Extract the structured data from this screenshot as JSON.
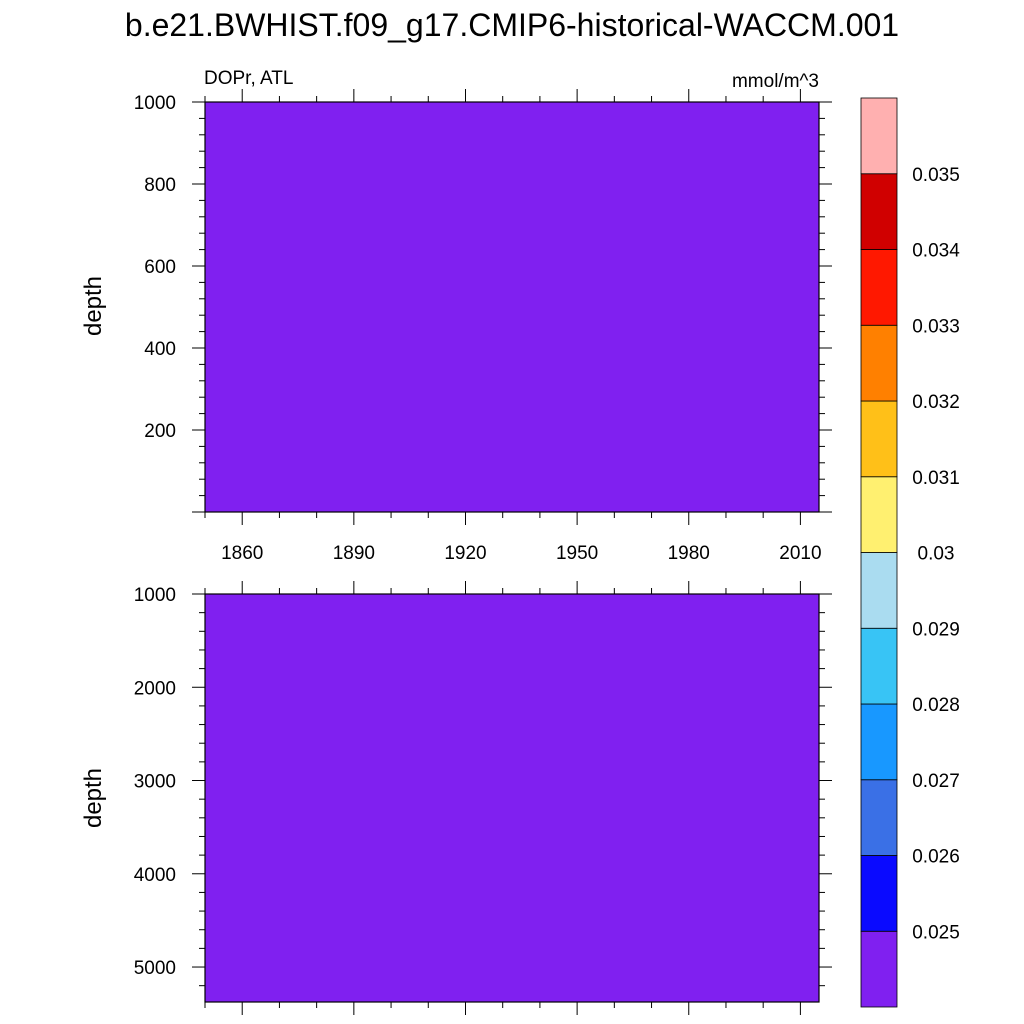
{
  "chart_data": {
    "type": "heatmap",
    "title": "b.e21.BWHIST.f09_g17.CMIP6-historical-WACCM.001",
    "left_label": "DOPr, ATL",
    "units": "mmol/m^3",
    "fill_color": "#8020F0",
    "panels": [
      {
        "name": "upper",
        "ylabel": "depth",
        "ylim": [
          1000,
          0
        ],
        "data_ylim": [
          1000,
          0
        ],
        "yticks": [
          200,
          400,
          600,
          800,
          1000
        ],
        "ytick_labels": [
          "200",
          "400",
          "600",
          "800",
          "1000"
        ],
        "xlim": [
          1850,
          2015
        ],
        "xticks": [
          1860,
          1890,
          1920,
          1950,
          1980,
          2010
        ],
        "xtick_labels": [
          "1860",
          "1890",
          "1920",
          "1950",
          "1980",
          "2010"
        ],
        "value_below": 0.025
      },
      {
        "name": "lower",
        "ylabel": "depth",
        "ylim": [
          1000,
          5375
        ],
        "data_ylim": [
          1000,
          5375
        ],
        "yticks": [
          1000,
          2000,
          3000,
          4000,
          5000
        ],
        "ytick_labels": [
          "1000",
          "2000",
          "3000",
          "4000",
          "5000"
        ],
        "xlim": [
          1850,
          2015
        ],
        "xticks": [
          1860,
          1890,
          1920,
          1950,
          1980,
          2010
        ],
        "xtick_labels": [],
        "value_below": 0.025
      }
    ],
    "colorbar": {
      "levels": [
        0.025,
        0.026,
        0.027,
        0.028,
        0.029,
        0.03,
        0.031,
        0.032,
        0.033,
        0.034,
        0.035
      ],
      "labels": [
        "0.025",
        "0.026",
        "0.027",
        "0.028",
        "0.029",
        "0.03",
        "0.031",
        "0.032",
        "0.033",
        "0.034",
        "0.035"
      ],
      "colors": [
        "#8020F0",
        "#0A0AFF",
        "#3A70E6",
        "#1898FF",
        "#38C4F5",
        "#AADCF0",
        "#FFF070",
        "#FFC018",
        "#FF8000",
        "#FF1800",
        "#D00000",
        "#FFB0B0"
      ]
    }
  }
}
